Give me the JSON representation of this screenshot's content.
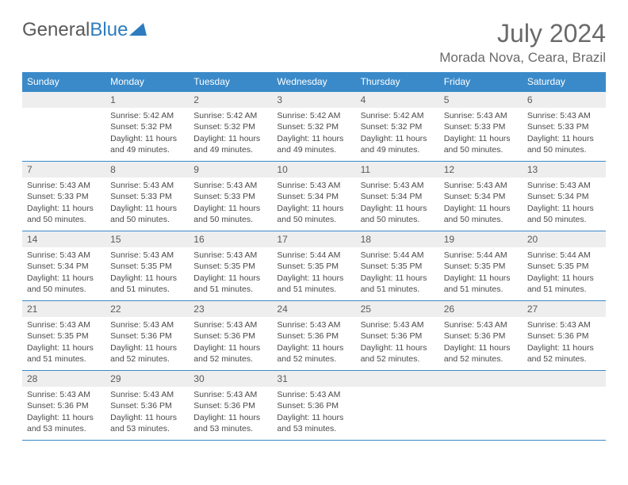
{
  "logo": {
    "text1": "General",
    "text2": "Blue"
  },
  "title": "July 2024",
  "location": "Morada Nova, Ceara, Brazil",
  "theme": {
    "header_bg": "#3a8ac9",
    "header_text": "#ffffff",
    "border": "#3a8ac9",
    "daynum_bg": "#eeeeee",
    "text": "#4a4a4a",
    "page_bg": "#ffffff"
  },
  "typography": {
    "title_fontsize": 32,
    "location_fontsize": 17,
    "dayheader_fontsize": 12,
    "cell_fontsize": 10.5
  },
  "days_of_week": [
    "Sunday",
    "Monday",
    "Tuesday",
    "Wednesday",
    "Thursday",
    "Friday",
    "Saturday"
  ],
  "weeks": [
    [
      null,
      {
        "n": "1",
        "sr": "Sunrise: 5:42 AM",
        "ss": "Sunset: 5:32 PM",
        "d1": "Daylight: 11 hours",
        "d2": "and 49 minutes."
      },
      {
        "n": "2",
        "sr": "Sunrise: 5:42 AM",
        "ss": "Sunset: 5:32 PM",
        "d1": "Daylight: 11 hours",
        "d2": "and 49 minutes."
      },
      {
        "n": "3",
        "sr": "Sunrise: 5:42 AM",
        "ss": "Sunset: 5:32 PM",
        "d1": "Daylight: 11 hours",
        "d2": "and 49 minutes."
      },
      {
        "n": "4",
        "sr": "Sunrise: 5:42 AM",
        "ss": "Sunset: 5:32 PM",
        "d1": "Daylight: 11 hours",
        "d2": "and 49 minutes."
      },
      {
        "n": "5",
        "sr": "Sunrise: 5:43 AM",
        "ss": "Sunset: 5:33 PM",
        "d1": "Daylight: 11 hours",
        "d2": "and 50 minutes."
      },
      {
        "n": "6",
        "sr": "Sunrise: 5:43 AM",
        "ss": "Sunset: 5:33 PM",
        "d1": "Daylight: 11 hours",
        "d2": "and 50 minutes."
      }
    ],
    [
      {
        "n": "7",
        "sr": "Sunrise: 5:43 AM",
        "ss": "Sunset: 5:33 PM",
        "d1": "Daylight: 11 hours",
        "d2": "and 50 minutes."
      },
      {
        "n": "8",
        "sr": "Sunrise: 5:43 AM",
        "ss": "Sunset: 5:33 PM",
        "d1": "Daylight: 11 hours",
        "d2": "and 50 minutes."
      },
      {
        "n": "9",
        "sr": "Sunrise: 5:43 AM",
        "ss": "Sunset: 5:33 PM",
        "d1": "Daylight: 11 hours",
        "d2": "and 50 minutes."
      },
      {
        "n": "10",
        "sr": "Sunrise: 5:43 AM",
        "ss": "Sunset: 5:34 PM",
        "d1": "Daylight: 11 hours",
        "d2": "and 50 minutes."
      },
      {
        "n": "11",
        "sr": "Sunrise: 5:43 AM",
        "ss": "Sunset: 5:34 PM",
        "d1": "Daylight: 11 hours",
        "d2": "and 50 minutes."
      },
      {
        "n": "12",
        "sr": "Sunrise: 5:43 AM",
        "ss": "Sunset: 5:34 PM",
        "d1": "Daylight: 11 hours",
        "d2": "and 50 minutes."
      },
      {
        "n": "13",
        "sr": "Sunrise: 5:43 AM",
        "ss": "Sunset: 5:34 PM",
        "d1": "Daylight: 11 hours",
        "d2": "and 50 minutes."
      }
    ],
    [
      {
        "n": "14",
        "sr": "Sunrise: 5:43 AM",
        "ss": "Sunset: 5:34 PM",
        "d1": "Daylight: 11 hours",
        "d2": "and 50 minutes."
      },
      {
        "n": "15",
        "sr": "Sunrise: 5:43 AM",
        "ss": "Sunset: 5:35 PM",
        "d1": "Daylight: 11 hours",
        "d2": "and 51 minutes."
      },
      {
        "n": "16",
        "sr": "Sunrise: 5:43 AM",
        "ss": "Sunset: 5:35 PM",
        "d1": "Daylight: 11 hours",
        "d2": "and 51 minutes."
      },
      {
        "n": "17",
        "sr": "Sunrise: 5:44 AM",
        "ss": "Sunset: 5:35 PM",
        "d1": "Daylight: 11 hours",
        "d2": "and 51 minutes."
      },
      {
        "n": "18",
        "sr": "Sunrise: 5:44 AM",
        "ss": "Sunset: 5:35 PM",
        "d1": "Daylight: 11 hours",
        "d2": "and 51 minutes."
      },
      {
        "n": "19",
        "sr": "Sunrise: 5:44 AM",
        "ss": "Sunset: 5:35 PM",
        "d1": "Daylight: 11 hours",
        "d2": "and 51 minutes."
      },
      {
        "n": "20",
        "sr": "Sunrise: 5:44 AM",
        "ss": "Sunset: 5:35 PM",
        "d1": "Daylight: 11 hours",
        "d2": "and 51 minutes."
      }
    ],
    [
      {
        "n": "21",
        "sr": "Sunrise: 5:43 AM",
        "ss": "Sunset: 5:35 PM",
        "d1": "Daylight: 11 hours",
        "d2": "and 51 minutes."
      },
      {
        "n": "22",
        "sr": "Sunrise: 5:43 AM",
        "ss": "Sunset: 5:36 PM",
        "d1": "Daylight: 11 hours",
        "d2": "and 52 minutes."
      },
      {
        "n": "23",
        "sr": "Sunrise: 5:43 AM",
        "ss": "Sunset: 5:36 PM",
        "d1": "Daylight: 11 hours",
        "d2": "and 52 minutes."
      },
      {
        "n": "24",
        "sr": "Sunrise: 5:43 AM",
        "ss": "Sunset: 5:36 PM",
        "d1": "Daylight: 11 hours",
        "d2": "and 52 minutes."
      },
      {
        "n": "25",
        "sr": "Sunrise: 5:43 AM",
        "ss": "Sunset: 5:36 PM",
        "d1": "Daylight: 11 hours",
        "d2": "and 52 minutes."
      },
      {
        "n": "26",
        "sr": "Sunrise: 5:43 AM",
        "ss": "Sunset: 5:36 PM",
        "d1": "Daylight: 11 hours",
        "d2": "and 52 minutes."
      },
      {
        "n": "27",
        "sr": "Sunrise: 5:43 AM",
        "ss": "Sunset: 5:36 PM",
        "d1": "Daylight: 11 hours",
        "d2": "and 52 minutes."
      }
    ],
    [
      {
        "n": "28",
        "sr": "Sunrise: 5:43 AM",
        "ss": "Sunset: 5:36 PM",
        "d1": "Daylight: 11 hours",
        "d2": "and 53 minutes."
      },
      {
        "n": "29",
        "sr": "Sunrise: 5:43 AM",
        "ss": "Sunset: 5:36 PM",
        "d1": "Daylight: 11 hours",
        "d2": "and 53 minutes."
      },
      {
        "n": "30",
        "sr": "Sunrise: 5:43 AM",
        "ss": "Sunset: 5:36 PM",
        "d1": "Daylight: 11 hours",
        "d2": "and 53 minutes."
      },
      {
        "n": "31",
        "sr": "Sunrise: 5:43 AM",
        "ss": "Sunset: 5:36 PM",
        "d1": "Daylight: 11 hours",
        "d2": "and 53 minutes."
      },
      null,
      null,
      null
    ]
  ]
}
